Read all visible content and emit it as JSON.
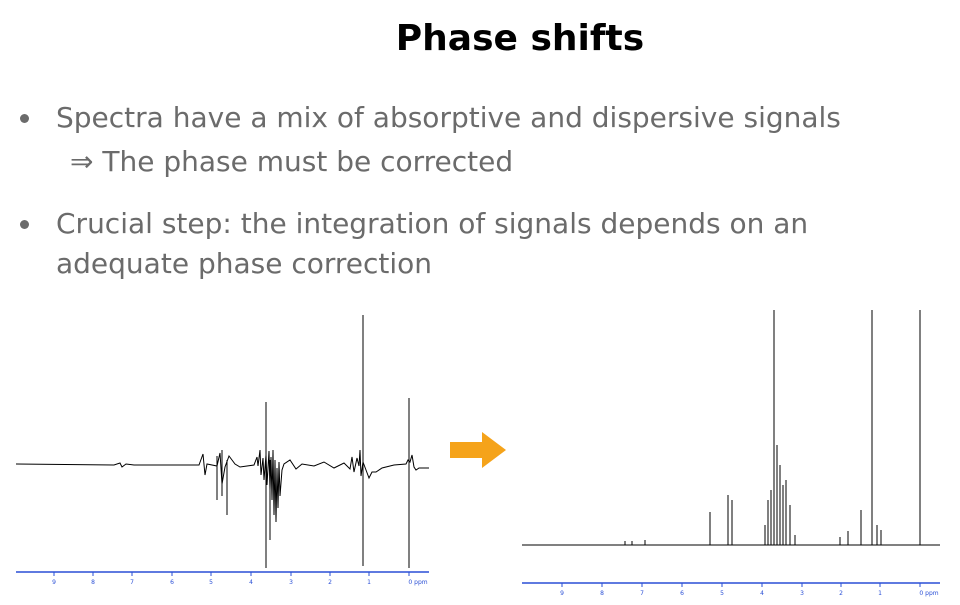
{
  "slide": {
    "title": "Phase shifts",
    "bullets": [
      {
        "text": "Spectra have a mix of absorptive and dispersive signals",
        "sub": "⇒ The phase must be corrected"
      },
      {
        "text": "Crucial step:  the integration of signals depends on an adequate phase correction"
      }
    ]
  },
  "spectra": {
    "left": {
      "axis_ticks": [
        "9",
        "8",
        "7",
        "6",
        "5",
        "4",
        "3",
        "2",
        "1",
        "0 ppm"
      ]
    },
    "right": {
      "axis_ticks": [
        "9",
        "8",
        "7",
        "6",
        "5",
        "4",
        "3",
        "2",
        "1",
        "0 ppm"
      ]
    }
  },
  "colors": {
    "arrow": "#f5a31a",
    "text": "#6b6b6b",
    "spectrum": "#000000",
    "axis": "#2a4fd6"
  }
}
